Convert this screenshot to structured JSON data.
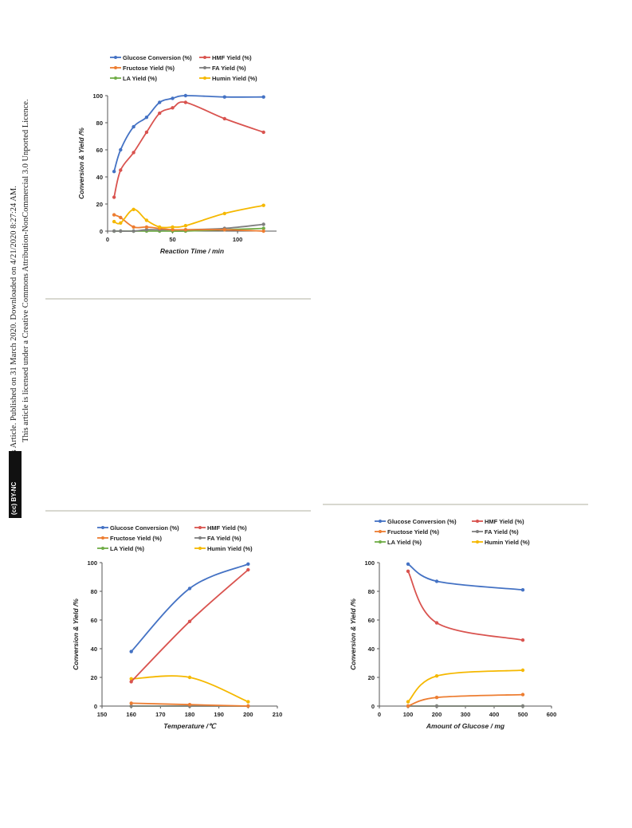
{
  "sidebar": {
    "line1": "Open Access Article. Published on 31 March 2020. Downloaded on 4/21/2020 8:27:24 AM.",
    "line2": "This article is licensed under a Creative Commons Attribution-NonCommercial 3.0 Unported Licence.",
    "badge": "(cc) BY-NC"
  },
  "colors": {
    "glucose": "#4472C4",
    "hmf": "#D9534F",
    "fructose": "#ED7D31",
    "fa": "#7F7F7F",
    "la": "#70AD47",
    "humin": "#F5B800"
  },
  "chart_data": [
    {
      "type": "line",
      "xlabel": "Reaction Time / min",
      "ylabel": "Conversion  &  Yield  /%",
      "xlim": [
        0,
        130
      ],
      "ylim": [
        0,
        100
      ],
      "xticks": [
        "0",
        "50",
        "100"
      ],
      "yticks": [
        "0",
        "20",
        "40",
        "60",
        "80",
        "100"
      ],
      "legend_rows": [
        [
          "Glucose Conversion (%)",
          "HMF Yield (%)"
        ],
        [
          "Fructose Yield (%)",
          "FA Yield (%)"
        ],
        [
          "LA Yield (%)",
          "Humin Yield (%)"
        ]
      ],
      "series": [
        {
          "name": "Glucose Conversion (%)",
          "color": "#4472C4",
          "x": [
            5,
            10,
            20,
            30,
            40,
            50,
            60,
            90,
            120
          ],
          "y": [
            44,
            60,
            77,
            84,
            95,
            98,
            100,
            99,
            99
          ]
        },
        {
          "name": "HMF Yield (%)",
          "color": "#D9534F",
          "x": [
            5,
            10,
            20,
            30,
            40,
            50,
            60,
            90,
            120
          ],
          "y": [
            25,
            45,
            58,
            73,
            87,
            91,
            95,
            83,
            73
          ]
        },
        {
          "name": "Fructose Yield (%)",
          "color": "#ED7D31",
          "x": [
            5,
            10,
            20,
            30,
            40,
            50,
            60,
            90,
            120
          ],
          "y": [
            12,
            10,
            3,
            3,
            2,
            1,
            1,
            1,
            0
          ]
        },
        {
          "name": "FA Yield (%)",
          "color": "#7F7F7F",
          "x": [
            5,
            10,
            20,
            30,
            40,
            50,
            60,
            90,
            120
          ],
          "y": [
            0,
            0,
            0,
            1,
            1,
            1,
            1,
            2,
            5
          ]
        },
        {
          "name": "LA Yield (%)",
          "color": "#70AD47",
          "x": [
            5,
            10,
            20,
            30,
            40,
            50,
            60,
            90,
            120
          ],
          "y": [
            0,
            0,
            0,
            0,
            0,
            0,
            0,
            1,
            2
          ]
        },
        {
          "name": "Humin Yield (%)",
          "color": "#F5B800",
          "x": [
            5,
            10,
            20,
            30,
            40,
            50,
            60,
            90,
            120
          ],
          "y": [
            7,
            6,
            16,
            8,
            3,
            3,
            4,
            13,
            19
          ]
        }
      ]
    },
    {
      "type": "line",
      "xlabel": "Temperature /℃",
      "ylabel": "Conversion  &  Yield  /%",
      "xlim": [
        150,
        210
      ],
      "ylim": [
        0,
        100
      ],
      "xticks": [
        "150",
        "160",
        "170",
        "180",
        "190",
        "200",
        "210"
      ],
      "yticks": [
        "0",
        "20",
        "40",
        "60",
        "80",
        "100"
      ],
      "legend_rows": [
        [
          "Glucose Conversion (%)",
          "HMF Yield (%)"
        ],
        [
          "Fructose Yield (%)",
          "FA Yield (%)"
        ],
        [
          "LA Yield (%)",
          "Humin Yield (%)"
        ]
      ],
      "series": [
        {
          "name": "Glucose Conversion (%)",
          "color": "#4472C4",
          "x": [
            160,
            180,
            200
          ],
          "y": [
            38,
            82,
            99
          ]
        },
        {
          "name": "HMF Yield (%)",
          "color": "#D9534F",
          "x": [
            160,
            180,
            200
          ],
          "y": [
            17,
            59,
            95
          ]
        },
        {
          "name": "Fructose Yield (%)",
          "color": "#ED7D31",
          "x": [
            160,
            180,
            200
          ],
          "y": [
            2,
            1,
            0
          ]
        },
        {
          "name": "FA Yield (%)",
          "color": "#7F7F7F",
          "x": [
            160,
            180,
            200
          ],
          "y": [
            0,
            0,
            0
          ]
        },
        {
          "name": "LA Yield (%)",
          "color": "#70AD47",
          "x": [
            160,
            180,
            200
          ],
          "y": [
            0,
            0,
            0
          ]
        },
        {
          "name": "Humin Yield (%)",
          "color": "#F5B800",
          "x": [
            160,
            180,
            200
          ],
          "y": [
            19,
            20,
            3
          ]
        }
      ]
    },
    {
      "type": "line",
      "xlabel": "Amount of Glucose / mg",
      "ylabel": "Conversion  &  Yield  /%",
      "xlim": [
        0,
        600
      ],
      "ylim": [
        0,
        100
      ],
      "xticks": [
        "0",
        "100",
        "200",
        "300",
        "400",
        "500",
        "600"
      ],
      "yticks": [
        "0",
        "20",
        "40",
        "60",
        "80",
        "100"
      ],
      "legend_rows": [
        [
          "Glucose Conversion (%)",
          "HMF Yield (%)"
        ],
        [
          "Fructose Yield (%)",
          "FA Yield (%)"
        ],
        [
          "LA Yield (%)",
          "Humin Yield (%)"
        ]
      ],
      "series": [
        {
          "name": "Glucose Conversion (%)",
          "color": "#4472C4",
          "x": [
            100,
            200,
            500
          ],
          "y": [
            99,
            87,
            81
          ]
        },
        {
          "name": "HMF Yield (%)",
          "color": "#D9534F",
          "x": [
            100,
            200,
            500
          ],
          "y": [
            94,
            58,
            46
          ]
        },
        {
          "name": "Fructose Yield (%)",
          "color": "#ED7D31",
          "x": [
            100,
            200,
            500
          ],
          "y": [
            0,
            6,
            8
          ]
        },
        {
          "name": "FA Yield (%)",
          "color": "#7F7F7F",
          "x": [
            100,
            200,
            500
          ],
          "y": [
            0,
            0,
            0
          ]
        },
        {
          "name": "LA Yield (%)",
          "color": "#70AD47",
          "x": [
            100,
            200,
            500
          ],
          "y": [
            0,
            0,
            0
          ]
        },
        {
          "name": "Humin Yield (%)",
          "color": "#F5B800",
          "x": [
            100,
            200,
            500
          ],
          "y": [
            3,
            21,
            25
          ]
        }
      ]
    }
  ]
}
